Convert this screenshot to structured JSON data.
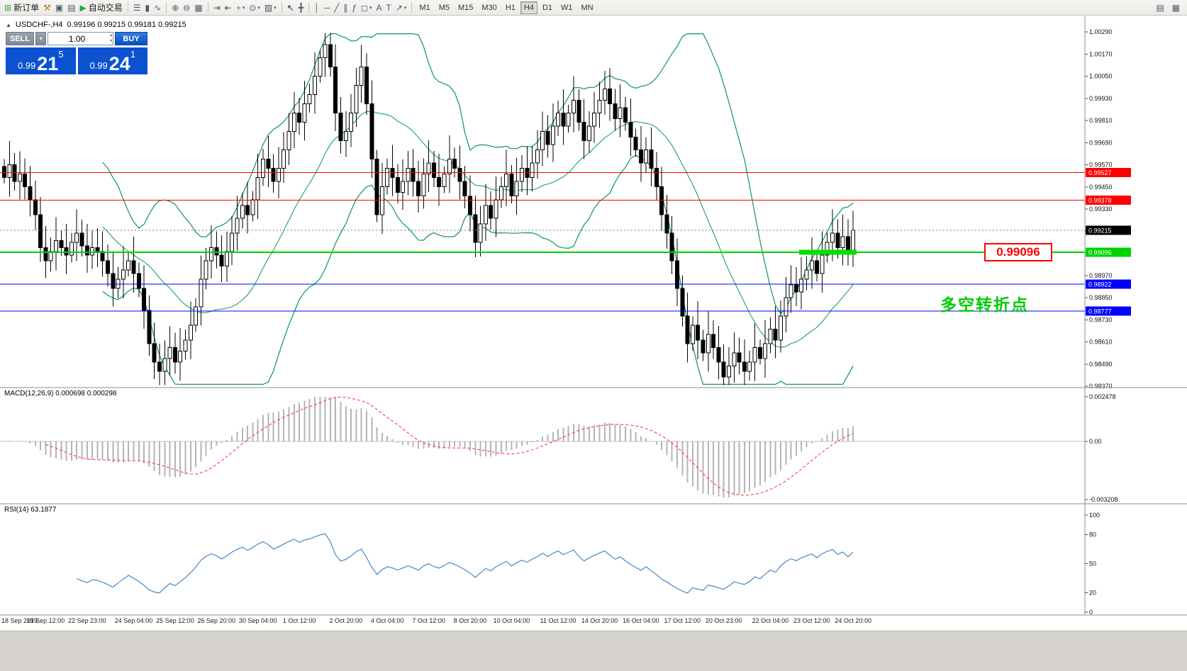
{
  "toolbar": {
    "icons": [
      {
        "name": "new-order-icon",
        "glyph": "⊞",
        "color": "#1faa3c",
        "label": "新订单"
      },
      {
        "name": "mql-wizard-icon",
        "glyph": "⚒",
        "color": "#b07b28"
      },
      {
        "name": "charts-window-icon",
        "glyph": "▣"
      },
      {
        "name": "profiles-icon",
        "glyph": "▤"
      },
      {
        "name": "autotrading-button",
        "glyph": "▶",
        "color": "#1faa3c",
        "label": "自动交易"
      },
      {
        "sep": true
      },
      {
        "name": "bar-chart-icon",
        "glyph": "☰"
      },
      {
        "name": "candlestick-chart-icon",
        "glyph": "▮"
      },
      {
        "name": "line-chart-icon",
        "glyph": "∿"
      },
      {
        "sep": true
      },
      {
        "name": "zoom-in-icon",
        "glyph": "⊕"
      },
      {
        "name": "zoom-out-icon",
        "glyph": "⊖"
      },
      {
        "name": "tile-windows-icon",
        "glyph": "▦"
      },
      {
        "sep": true
      },
      {
        "name": "auto-scroll-icon",
        "glyph": "⇥"
      },
      {
        "name": "chart-shift-icon",
        "glyph": "⇤"
      },
      {
        "name": "indicators-icon",
        "glyph": "+",
        "color": "#1faa3c",
        "caret": true
      },
      {
        "name": "periods-icon",
        "glyph": "⊙",
        "caret": true
      },
      {
        "name": "templates-icon",
        "glyph": "▨",
        "caret": true
      },
      {
        "sep": true
      },
      {
        "name": "cursor-icon",
        "glyph": "↖",
        "color": "#222222"
      },
      {
        "name": "crosshair-icon",
        "glyph": "╋"
      },
      {
        "sep": true
      },
      {
        "name": "vertical-line-icon",
        "glyph": "│"
      },
      {
        "name": "horizontal-line-icon",
        "glyph": "─"
      },
      {
        "name": "trendline-icon",
        "glyph": "╱"
      },
      {
        "name": "channel-icon",
        "glyph": "∥"
      },
      {
        "name": "fibonacci-icon",
        "glyph": "ƒ"
      },
      {
        "name": "shapes-icon",
        "glyph": "◻",
        "caret": true
      },
      {
        "name": "text-icon",
        "glyph": "A"
      },
      {
        "name": "text-label-icon",
        "glyph": "T"
      },
      {
        "name": "arrows-icon",
        "glyph": "↗",
        "caret": true
      },
      {
        "sep": true
      }
    ],
    "timeframes": [
      "M1",
      "M5",
      "M15",
      "M30",
      "H1",
      "H4",
      "D1",
      "W1",
      "MN"
    ],
    "active_timeframe": "H4",
    "right_icons": [
      {
        "name": "new-window-icon",
        "glyph": "▤"
      },
      {
        "name": "window-list-icon",
        "glyph": "▦"
      }
    ]
  },
  "symbol_info": {
    "icon": "▲",
    "name": "USDCHF-,H4",
    "ohlc": "0.99196 0.99215 0.99181 0.99215"
  },
  "one_click": {
    "sell_label": "SELL",
    "buy_label": "BUY",
    "volume": "1.00",
    "icons": {
      "chevron_down": "▾",
      "chevron_up": "▴"
    },
    "sell_price": {
      "base": "0.99",
      "pips": "21",
      "frac": "5"
    },
    "buy_price": {
      "base": "0.99",
      "pips": "24",
      "frac": "1"
    }
  },
  "indicators": {
    "macd_title": "MACD(12,26,9) 0.000698 0.000298",
    "rsi_title": "RSI(14) 63.1877"
  },
  "annotations": {
    "price_callout": "0.99096",
    "turning_point_text": "多空转折点",
    "highlight": {
      "from_bar": 154,
      "to_bar": 164,
      "price": 0.99096,
      "color": "#00e000"
    }
  },
  "levels": [
    {
      "label": "0.99527",
      "price": 0.99527,
      "color": "#ff0000",
      "width": 1
    },
    {
      "label": "0.99378",
      "price": 0.99378,
      "color": "#ff0000",
      "width": 1
    },
    {
      "label": "0.99096",
      "price": 0.99096,
      "color": "#00d400",
      "width": 2
    },
    {
      "label": "0.98922",
      "price": 0.98922,
      "color": "#0000ff",
      "width": 1
    },
    {
      "label": "0.98777",
      "price": 0.98777,
      "color": "#0000ff",
      "width": 1
    }
  ],
  "current_price": {
    "value": 0.99215,
    "label": "0.99215"
  },
  "y_axis": {
    "max": 1.0029,
    "min": 0.9837,
    "step": 0.0012
  },
  "macd_axis": {
    "max": 0.002478,
    "min": -0.003208,
    "labels": [
      "0.002478",
      "0.00",
      "-0.003208"
    ]
  },
  "rsi_axis": {
    "labels": [
      100,
      80,
      50,
      20,
      0
    ]
  },
  "time_axis": [
    "18 Sep 2019",
    "19 Sep 12:00",
    "22 Sep 23:00",
    "24 Sep 04:00",
    "25 Sep 12:00",
    "26 Sep 20:00",
    "30 Sep 04:00",
    "1 Oct 12:00",
    "2 Oct 20:00",
    "4 Oct 04:00",
    "7 Oct 12:00",
    "8 Oct 20:00",
    "10 Oct 04:00",
    "11 Oct 12:00",
    "14 Oct 20:00",
    "16 Oct 04:00",
    "17 Oct 12:00",
    "20 Oct 23:00",
    "22 Oct 04:00",
    "23 Oct 12:00",
    "24 Oct 20:00"
  ],
  "colors": {
    "band": "#0a9a4a",
    "rsi": "#4a86c8",
    "macd_bar": "#b4b4b4",
    "macd_signal": "#ff2a2a",
    "candle_up": "#ffffff",
    "candle_down": "#000000",
    "candle_border": "#000000"
  },
  "chart_data": {
    "type": "candlestick",
    "symbol": "USDCHF-",
    "timeframe": "H4",
    "current_ohlc": {
      "open": 0.99196,
      "high": 0.99215,
      "low": 0.99181,
      "close": 0.99215
    },
    "overlays": [
      "Bollinger Bands (20,2)"
    ],
    "subwindows": [
      {
        "name": "MACD(12,26,9)",
        "values": [
          0.000698,
          0.000298
        ],
        "range": [
          -0.003208,
          0.002478
        ]
      },
      {
        "name": "RSI(14)",
        "value": 63.1877,
        "range": [
          0,
          100
        ]
      }
    ],
    "y_range": [
      0.9837,
      1.0029
    ],
    "closes": [
      0.995,
      0.9957,
      0.9948,
      0.9952,
      0.9945,
      0.9938,
      0.993,
      0.9912,
      0.9905,
      0.991,
      0.9916,
      0.9912,
      0.9908,
      0.9915,
      0.992,
      0.9913,
      0.9908,
      0.9912,
      0.991,
      0.9905,
      0.9898,
      0.989,
      0.9895,
      0.99,
      0.9905,
      0.9898,
      0.989,
      0.9878,
      0.986,
      0.985,
      0.9845,
      0.9852,
      0.9858,
      0.985,
      0.9856,
      0.9862,
      0.987,
      0.988,
      0.9895,
      0.9905,
      0.9912,
      0.9908,
      0.9902,
      0.991,
      0.992,
      0.9928,
      0.9935,
      0.993,
      0.9938,
      0.995,
      0.996,
      0.9955,
      0.9948,
      0.9955,
      0.9965,
      0.9975,
      0.9985,
      0.998,
      0.999,
      0.9995,
      1.0005,
      1.0015,
      1.0022,
      1.001,
      0.9985,
      0.997,
      0.9975,
      0.9985,
      1.0,
      1.001,
      0.999,
      0.996,
      0.993,
      0.9945,
      0.9955,
      0.995,
      0.9942,
      0.9948,
      0.9955,
      0.9948,
      0.994,
      0.9952,
      0.9958,
      0.995,
      0.9945,
      0.9952,
      0.996,
      0.9955,
      0.9948,
      0.994,
      0.993,
      0.9915,
      0.9925,
      0.9935,
      0.9928,
      0.9938,
      0.9945,
      0.9952,
      0.994,
      0.9948,
      0.9955,
      0.995,
      0.9958,
      0.9965,
      0.9975,
      0.9968,
      0.9978,
      0.9985,
      0.9978,
      0.9985,
      0.9992,
      0.998,
      0.997,
      0.9978,
      0.9985,
      0.9992,
      0.9998,
      0.999,
      0.9982,
      0.9988,
      0.998,
      0.9972,
      0.9965,
      0.9958,
      0.9965,
      0.9955,
      0.9945,
      0.993,
      0.992,
      0.9905,
      0.989,
      0.9875,
      0.986,
      0.987,
      0.9862,
      0.9855,
      0.9865,
      0.9858,
      0.985,
      0.9842,
      0.9848,
      0.9855,
      0.985,
      0.9845,
      0.985,
      0.9858,
      0.9852,
      0.986,
      0.9868,
      0.9862,
      0.9875,
      0.9885,
      0.9892,
      0.9888,
      0.9895,
      0.99,
      0.9905,
      0.9898,
      0.9908,
      0.9915,
      0.992,
      0.9912,
      0.9918,
      0.991,
      0.99215
    ]
  }
}
